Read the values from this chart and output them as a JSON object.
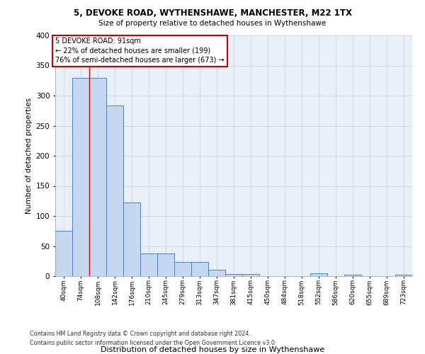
{
  "title1": "5, DEVOKE ROAD, WYTHENSHAWE, MANCHESTER, M22 1TX",
  "title2": "Size of property relative to detached houses in Wythenshawe",
  "xlabel": "Distribution of detached houses by size in Wythenshawe",
  "ylabel": "Number of detached properties",
  "footnote1": "Contains HM Land Registry data © Crown copyright and database right 2024.",
  "footnote2": "Contains public sector information licensed under the Open Government Licence v3.0.",
  "categories": [
    "40sqm",
    "74sqm",
    "108sqm",
    "142sqm",
    "176sqm",
    "210sqm",
    "245sqm",
    "279sqm",
    "313sqm",
    "347sqm",
    "381sqm",
    "415sqm",
    "450sqm",
    "484sqm",
    "518sqm",
    "552sqm",
    "586sqm",
    "620sqm",
    "655sqm",
    "689sqm",
    "723sqm"
  ],
  "values": [
    75,
    330,
    330,
    284,
    122,
    38,
    38,
    24,
    24,
    11,
    4,
    4,
    0,
    0,
    0,
    5,
    0,
    2,
    0,
    0,
    2
  ],
  "bar_color": "#c5d8f0",
  "bar_edge_color": "#4f81bd",
  "red_line_x": 1.5,
  "annotation_text": "5 DEVOKE ROAD: 91sqm\n← 22% of detached houses are smaller (199)\n76% of semi-detached houses are larger (673) →",
  "annotation_box_color": "#ffffff",
  "annotation_box_edge": "#cc0000",
  "ylim": [
    0,
    400
  ],
  "yticks": [
    0,
    50,
    100,
    150,
    200,
    250,
    300,
    350,
    400
  ],
  "grid_color": "#d0d8e8",
  "plot_bg_color": "#eaf0f8"
}
